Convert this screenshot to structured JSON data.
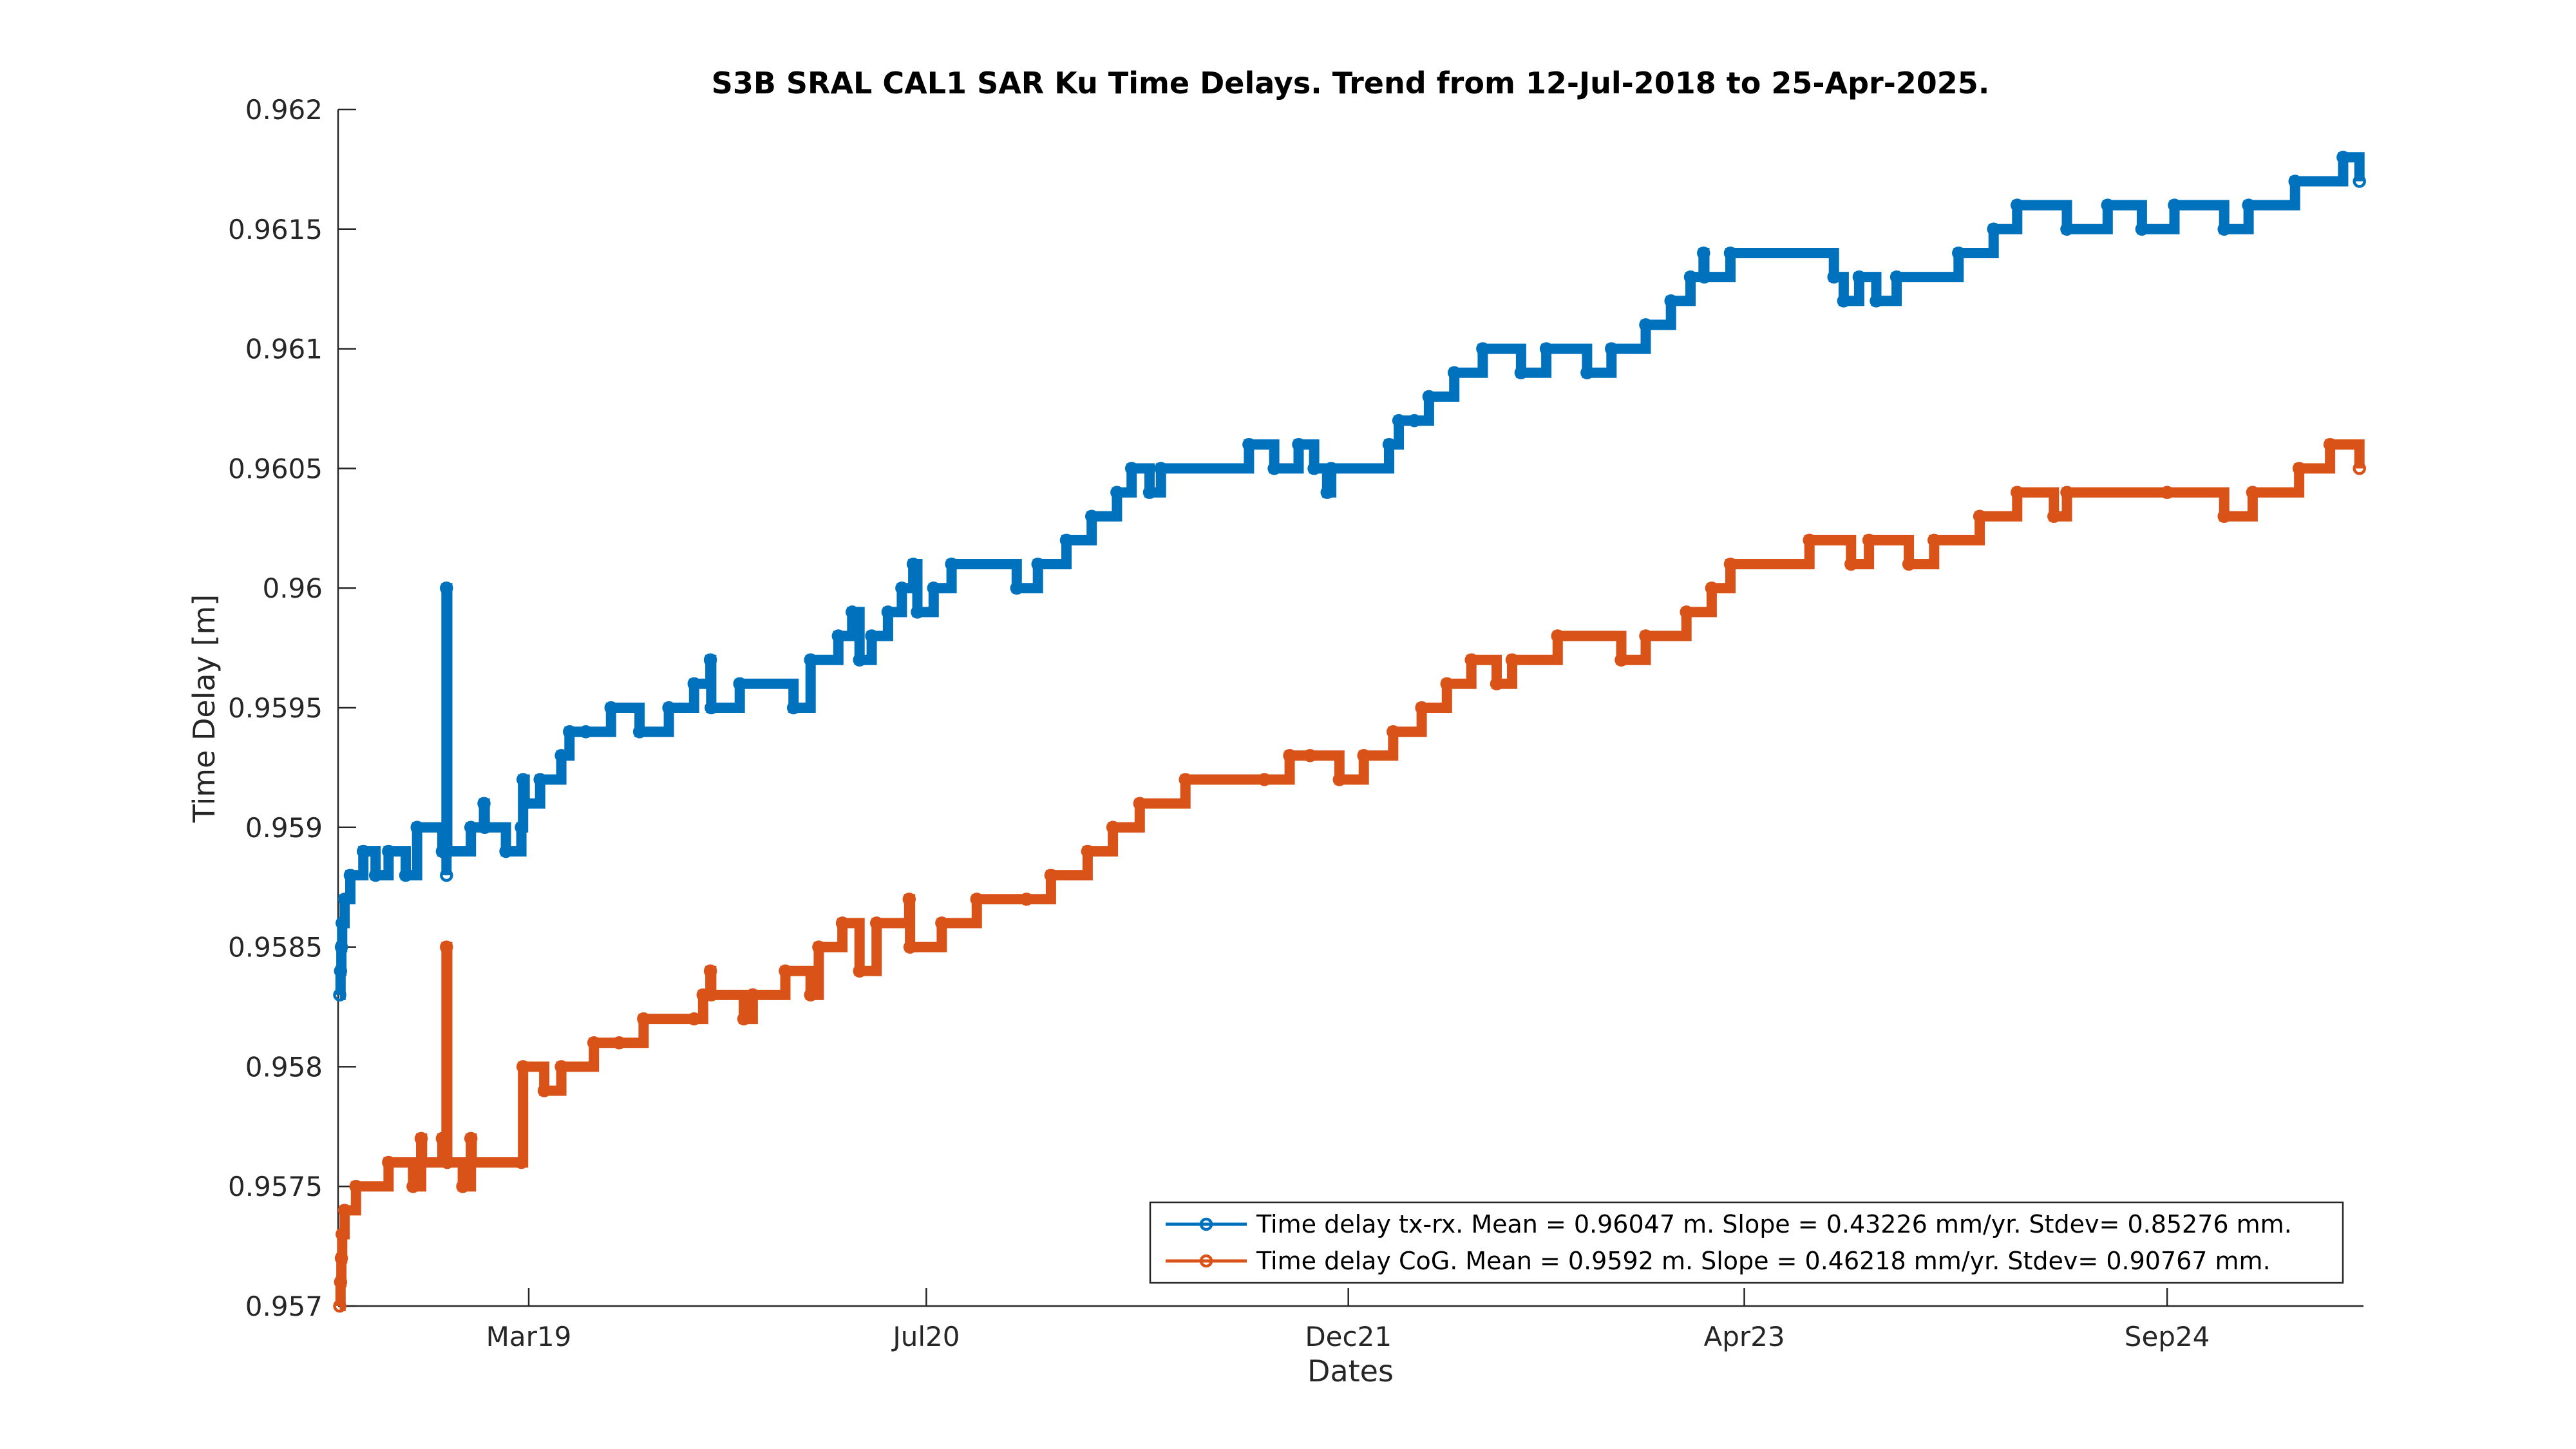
{
  "chart_data": {
    "type": "line",
    "title": "S3B SRAL CAL1 SAR Ku Time Delays. Trend from 12-Jul-2018 to 25-Apr-2025.",
    "xlabel": "Dates",
    "ylabel": "Time Delay [m]",
    "ylim": [
      0.957,
      0.962
    ],
    "xlim": [
      "2018-07-12",
      "2025-04-25"
    ],
    "y_ticks": [
      "0.957",
      "0.9575",
      "0.958",
      "0.9585",
      "0.959",
      "0.9595",
      "0.96",
      "0.9605",
      "0.961",
      "0.9615",
      "0.962"
    ],
    "x_ticks": [
      {
        "date": "2019-03-01",
        "label": "Mar19"
      },
      {
        "date": "2020-07-01",
        "label": "Jul20"
      },
      {
        "date": "2021-12-01",
        "label": "Dec21"
      },
      {
        "date": "2023-04-01",
        "label": "Apr23"
      },
      {
        "date": "2024-09-01",
        "label": "Sep24"
      }
    ],
    "grid": false,
    "legend_position": "bottom-right",
    "series": [
      {
        "name": "Time delay tx-rx. Mean = 0.96047 m. Slope = 0.43226 mm/yr. Stdev= 0.85276 mm.",
        "color": "#0072BD",
        "points": [
          [
            "2018-07-12",
            0.9583
          ],
          [
            "2018-07-13",
            0.9584
          ],
          [
            "2018-07-14",
            0.9585
          ],
          [
            "2018-07-15",
            0.9586
          ],
          [
            "2018-07-18",
            0.9587
          ],
          [
            "2018-07-25",
            0.9588
          ],
          [
            "2018-08-10",
            0.9589
          ],
          [
            "2018-08-25",
            0.9588
          ],
          [
            "2018-09-10",
            0.9589
          ],
          [
            "2018-10-01",
            0.9588
          ],
          [
            "2018-10-15",
            0.959
          ],
          [
            "2018-11-15",
            0.9589
          ],
          [
            "2018-11-20",
            0.9588
          ],
          [
            "2018-11-20",
            0.96
          ],
          [
            "2018-11-21",
            0.9589
          ],
          [
            "2018-12-20",
            0.959
          ],
          [
            "2019-01-05",
            0.9591
          ],
          [
            "2019-01-06",
            0.959
          ],
          [
            "2019-02-01",
            0.9589
          ],
          [
            "2019-02-20",
            0.959
          ],
          [
            "2019-02-22",
            0.9592
          ],
          [
            "2019-02-24",
            0.9591
          ],
          [
            "2019-03-15",
            0.9592
          ],
          [
            "2019-04-10",
            0.9593
          ],
          [
            "2019-04-20",
            0.9594
          ],
          [
            "2019-05-10",
            0.9594
          ],
          [
            "2019-06-10",
            0.9595
          ],
          [
            "2019-07-15",
            0.9594
          ],
          [
            "2019-08-20",
            0.9595
          ],
          [
            "2019-09-20",
            0.9596
          ],
          [
            "2019-10-10",
            0.9597
          ],
          [
            "2019-10-11",
            0.9595
          ],
          [
            "2019-11-15",
            0.9596
          ],
          [
            "2020-01-20",
            0.9595
          ],
          [
            "2020-02-10",
            0.9597
          ],
          [
            "2020-03-15",
            0.9598
          ],
          [
            "2020-04-01",
            0.9599
          ],
          [
            "2020-04-10",
            0.9597
          ],
          [
            "2020-04-25",
            0.9598
          ],
          [
            "2020-05-15",
            0.9599
          ],
          [
            "2020-06-01",
            0.96
          ],
          [
            "2020-06-15",
            0.9601
          ],
          [
            "2020-06-20",
            0.9599
          ],
          [
            "2020-07-10",
            0.96
          ],
          [
            "2020-08-01",
            0.9601
          ],
          [
            "2020-10-20",
            0.96
          ],
          [
            "2020-11-15",
            0.9601
          ],
          [
            "2020-12-20",
            0.9602
          ],
          [
            "2021-01-20",
            0.9603
          ],
          [
            "2021-02-20",
            0.9604
          ],
          [
            "2021-03-10",
            0.9605
          ],
          [
            "2021-04-01",
            0.9604
          ],
          [
            "2021-04-15",
            0.9605
          ],
          [
            "2021-08-01",
            0.9606
          ],
          [
            "2021-09-01",
            0.9605
          ],
          [
            "2021-10-01",
            0.9606
          ],
          [
            "2021-10-20",
            0.9605
          ],
          [
            "2021-11-05",
            0.9604
          ],
          [
            "2021-11-10",
            0.9605
          ],
          [
            "2022-01-20",
            0.9606
          ],
          [
            "2022-02-01",
            0.9607
          ],
          [
            "2022-02-20",
            0.9607
          ],
          [
            "2022-03-10",
            0.9608
          ],
          [
            "2022-04-10",
            0.9609
          ],
          [
            "2022-05-15",
            0.961
          ],
          [
            "2022-07-01",
            0.9609
          ],
          [
            "2022-08-01",
            0.961
          ],
          [
            "2022-09-20",
            0.9609
          ],
          [
            "2022-10-20",
            0.961
          ],
          [
            "2022-12-01",
            0.9611
          ],
          [
            "2023-01-01",
            0.9612
          ],
          [
            "2023-01-25",
            0.9613
          ],
          [
            "2023-02-10",
            0.9614
          ],
          [
            "2023-02-11",
            0.9613
          ],
          [
            "2023-03-15",
            0.9614
          ],
          [
            "2023-07-20",
            0.9613
          ],
          [
            "2023-08-01",
            0.9612
          ],
          [
            "2023-08-20",
            0.9613
          ],
          [
            "2023-09-10",
            0.9612
          ],
          [
            "2023-10-05",
            0.9613
          ],
          [
            "2023-12-20",
            0.9614
          ],
          [
            "2024-02-01",
            0.9615
          ],
          [
            "2024-03-01",
            0.9616
          ],
          [
            "2024-05-01",
            0.9615
          ],
          [
            "2024-06-20",
            0.9616
          ],
          [
            "2024-08-01",
            0.9615
          ],
          [
            "2024-09-10",
            0.9616
          ],
          [
            "2024-11-10",
            0.9615
          ],
          [
            "2024-12-10",
            0.9616
          ],
          [
            "2025-02-05",
            0.9617
          ],
          [
            "2025-04-05",
            0.9618
          ],
          [
            "2025-04-25",
            0.9617
          ]
        ]
      },
      {
        "name": "Time delay CoG. Mean = 0.9592 m. Slope = 0.46218 mm/yr. Stdev= 0.90767 mm.",
        "color": "#D95319",
        "points": [
          [
            "2018-07-12",
            0.957
          ],
          [
            "2018-07-13",
            0.9571
          ],
          [
            "2018-07-14",
            0.9572
          ],
          [
            "2018-07-15",
            0.9573
          ],
          [
            "2018-07-18",
            0.9574
          ],
          [
            "2018-08-01",
            0.9575
          ],
          [
            "2018-09-10",
            0.9576
          ],
          [
            "2018-10-10",
            0.9575
          ],
          [
            "2018-10-20",
            0.9577
          ],
          [
            "2018-10-21",
            0.9576
          ],
          [
            "2018-11-15",
            0.9577
          ],
          [
            "2018-11-20",
            0.9585
          ],
          [
            "2018-11-21",
            0.9576
          ],
          [
            "2018-12-10",
            0.9575
          ],
          [
            "2018-12-20",
            0.9577
          ],
          [
            "2018-12-21",
            0.9576
          ],
          [
            "2019-02-20",
            0.9576
          ],
          [
            "2019-02-22",
            0.958
          ],
          [
            "2019-03-20",
            0.9579
          ],
          [
            "2019-04-10",
            0.958
          ],
          [
            "2019-05-20",
            0.9581
          ],
          [
            "2019-06-20",
            0.9581
          ],
          [
            "2019-07-20",
            0.9582
          ],
          [
            "2019-09-20",
            0.9582
          ],
          [
            "2019-10-01",
            0.9583
          ],
          [
            "2019-10-10",
            0.9584
          ],
          [
            "2019-10-11",
            0.9583
          ],
          [
            "2019-11-20",
            0.9582
          ],
          [
            "2019-12-01",
            0.9583
          ],
          [
            "2020-01-10",
            0.9584
          ],
          [
            "2020-02-10",
            0.9583
          ],
          [
            "2020-02-20",
            0.9585
          ],
          [
            "2020-03-20",
            0.9586
          ],
          [
            "2020-04-10",
            0.9584
          ],
          [
            "2020-05-01",
            0.9586
          ],
          [
            "2020-06-10",
            0.9587
          ],
          [
            "2020-06-11",
            0.9585
          ],
          [
            "2020-07-20",
            0.9586
          ],
          [
            "2020-09-01",
            0.9587
          ],
          [
            "2020-11-01",
            0.9587
          ],
          [
            "2020-12-01",
            0.9588
          ],
          [
            "2021-01-15",
            0.9589
          ],
          [
            "2021-02-15",
            0.959
          ],
          [
            "2021-03-20",
            0.9591
          ],
          [
            "2021-05-15",
            0.9592
          ],
          [
            "2021-08-20",
            0.9592
          ],
          [
            "2021-09-20",
            0.9593
          ],
          [
            "2021-10-15",
            0.9593
          ],
          [
            "2021-11-20",
            0.9592
          ],
          [
            "2021-12-20",
            0.9593
          ],
          [
            "2022-01-25",
            0.9594
          ],
          [
            "2022-03-01",
            0.9595
          ],
          [
            "2022-04-01",
            0.9596
          ],
          [
            "2022-05-01",
            0.9597
          ],
          [
            "2022-06-01",
            0.9596
          ],
          [
            "2022-06-20",
            0.9597
          ],
          [
            "2022-08-15",
            0.9598
          ],
          [
            "2022-11-01",
            0.9597
          ],
          [
            "2022-12-01",
            0.9598
          ],
          [
            "2023-01-20",
            0.9599
          ],
          [
            "2023-02-20",
            0.96
          ],
          [
            "2023-03-15",
            0.9601
          ],
          [
            "2023-06-20",
            0.9602
          ],
          [
            "2023-08-10",
            0.9601
          ],
          [
            "2023-09-01",
            0.9602
          ],
          [
            "2023-10-20",
            0.9601
          ],
          [
            "2023-11-20",
            0.9602
          ],
          [
            "2024-01-15",
            0.9603
          ],
          [
            "2024-03-01",
            0.9604
          ],
          [
            "2024-04-15",
            0.9603
          ],
          [
            "2024-05-01",
            0.9604
          ],
          [
            "2024-09-01",
            0.9604
          ],
          [
            "2024-11-10",
            0.9603
          ],
          [
            "2024-12-15",
            0.9604
          ],
          [
            "2025-02-10",
            0.9605
          ],
          [
            "2025-03-20",
            0.9606
          ],
          [
            "2025-04-25",
            0.9605
          ]
        ]
      }
    ]
  }
}
